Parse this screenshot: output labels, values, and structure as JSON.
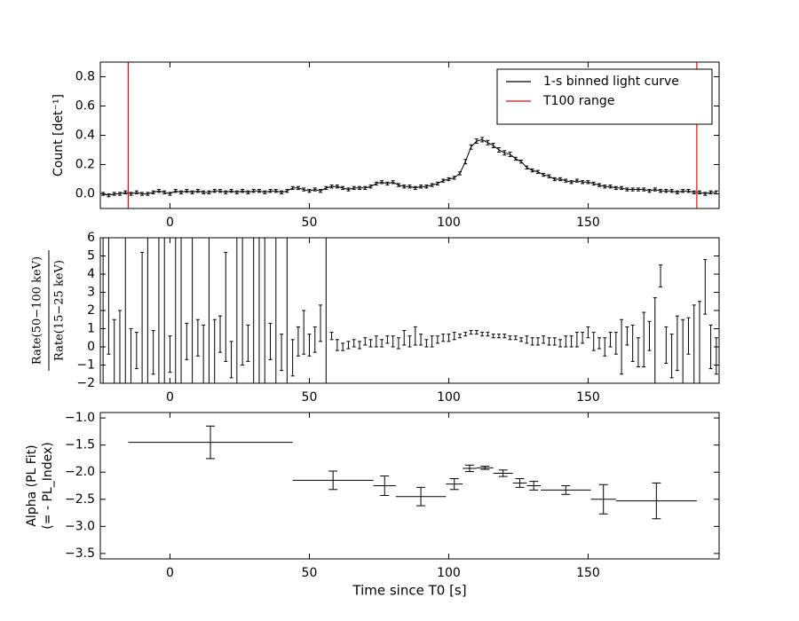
{
  "chart_data": [
    {
      "type": "errorbar",
      "ylabel": "Count [det⁻¹]",
      "xlim": [
        -25,
        197
      ],
      "ylim": [
        -0.1,
        0.9
      ],
      "xticks": [
        0,
        50,
        100,
        150
      ],
      "yticks": [
        {
          "value": 0,
          "label": "0.0"
        },
        0.2,
        0.4,
        0.6,
        0.8
      ],
      "legend": "upper right",
      "series": [
        {
          "name": "1-s binned light curve",
          "color": "#000000",
          "x": [
            -24,
            -22,
            -20,
            -18,
            -16,
            -14,
            -12,
            -10,
            -8,
            -6,
            -4,
            -2,
            0,
            2,
            4,
            6,
            8,
            10,
            12,
            14,
            16,
            18,
            20,
            22,
            24,
            26,
            28,
            30,
            32,
            34,
            36,
            38,
            40,
            42,
            44,
            46,
            48,
            50,
            52,
            54,
            56,
            58,
            60,
            62,
            64,
            66,
            68,
            70,
            72,
            74,
            76,
            78,
            80,
            82,
            84,
            86,
            88,
            90,
            92,
            94,
            96,
            98,
            100,
            102,
            104,
            106,
            108,
            110,
            112,
            114,
            116,
            118,
            120,
            122,
            124,
            126,
            128,
            130,
            132,
            134,
            136,
            138,
            140,
            142,
            144,
            146,
            148,
            150,
            152,
            154,
            156,
            158,
            160,
            162,
            164,
            166,
            168,
            170,
            172,
            174,
            176,
            178,
            180,
            182,
            184,
            186,
            188,
            190,
            192,
            194,
            196
          ],
          "values": [
            0.0,
            -0.01,
            0.0,
            0.0,
            0.01,
            0.0,
            0.01,
            0.0,
            0.0,
            0.01,
            0.02,
            0.01,
            0.0,
            0.02,
            0.01,
            0.02,
            0.01,
            0.02,
            0.01,
            0.01,
            0.02,
            0.02,
            0.01,
            0.02,
            0.01,
            0.02,
            0.01,
            0.02,
            0.02,
            0.01,
            0.02,
            0.02,
            0.01,
            0.02,
            0.04,
            0.04,
            0.03,
            0.02,
            0.03,
            0.02,
            0.04,
            0.05,
            0.05,
            0.04,
            0.03,
            0.04,
            0.04,
            0.04,
            0.05,
            0.07,
            0.08,
            0.07,
            0.08,
            0.06,
            0.05,
            0.05,
            0.04,
            0.05,
            0.05,
            0.06,
            0.07,
            0.09,
            0.1,
            0.11,
            0.14,
            0.22,
            0.32,
            0.36,
            0.37,
            0.35,
            0.33,
            0.3,
            0.28,
            0.27,
            0.24,
            0.22,
            0.18,
            0.16,
            0.15,
            0.13,
            0.12,
            0.1,
            0.1,
            0.09,
            0.08,
            0.09,
            0.08,
            0.08,
            0.07,
            0.06,
            0.05,
            0.05,
            0.04,
            0.04,
            0.03,
            0.03,
            0.03,
            0.03,
            0.02,
            0.03,
            0.02,
            0.02,
            0.02,
            0.01,
            0.02,
            0.02,
            0.01,
            0.01,
            0.0,
            0.01,
            0.01
          ],
          "errors": [
            0.01,
            0.01,
            0.01,
            0.01,
            0.01,
            0.01,
            0.01,
            0.01,
            0.01,
            0.01,
            0.01,
            0.01,
            0.01,
            0.01,
            0.01,
            0.01,
            0.01,
            0.01,
            0.01,
            0.01,
            0.01,
            0.01,
            0.01,
            0.01,
            0.01,
            0.01,
            0.01,
            0.01,
            0.01,
            0.01,
            0.01,
            0.01,
            0.01,
            0.01,
            0.01,
            0.01,
            0.01,
            0.01,
            0.01,
            0.01,
            0.01,
            0.01,
            0.01,
            0.01,
            0.01,
            0.01,
            0.01,
            0.01,
            0.01,
            0.01,
            0.01,
            0.01,
            0.01,
            0.01,
            0.01,
            0.01,
            0.01,
            0.01,
            0.01,
            0.01,
            0.01,
            0.01,
            0.01,
            0.01,
            0.01,
            0.015,
            0.015,
            0.015,
            0.015,
            0.015,
            0.015,
            0.015,
            0.015,
            0.015,
            0.01,
            0.01,
            0.01,
            0.01,
            0.01,
            0.01,
            0.01,
            0.01,
            0.01,
            0.01,
            0.01,
            0.01,
            0.01,
            0.01,
            0.01,
            0.01,
            0.01,
            0.01,
            0.01,
            0.01,
            0.01,
            0.01,
            0.01,
            0.01,
            0.01,
            0.01,
            0.01,
            0.01,
            0.01,
            0.01,
            0.01,
            0.01,
            0.01,
            0.01,
            0.01,
            0.01,
            0.01
          ]
        }
      ],
      "vlines": {
        "name": "T100 range",
        "color": "#ff0000",
        "x": [
          -15,
          189
        ]
      }
    },
    {
      "type": "errorbar",
      "ylabel_numerator": "Rate(50−100 keV)",
      "ylabel_denominator": "Rate(15−25 keV)",
      "xlim": [
        -25,
        197
      ],
      "ylim": [
        -2,
        6
      ],
      "xticks": [
        0,
        50,
        100,
        150
      ],
      "yticks": [
        {
          "value": -2,
          "label": "−2"
        },
        {
          "value": -1,
          "label": "−1"
        },
        0,
        1,
        2,
        3,
        4,
        5,
        6
      ],
      "color": "#000000",
      "x": [
        -24,
        -22,
        -20,
        -18,
        -16,
        -14,
        -12,
        -10,
        -8,
        -6,
        -4,
        -2,
        0,
        2,
        4,
        6,
        8,
        10,
        12,
        14,
        16,
        18,
        20,
        22,
        24,
        26,
        28,
        30,
        32,
        34,
        36,
        38,
        40,
        42,
        44,
        46,
        48,
        50,
        52,
        54,
        56,
        58,
        60,
        62,
        64,
        66,
        68,
        70,
        72,
        74,
        76,
        78,
        80,
        82,
        84,
        86,
        88,
        90,
        92,
        94,
        96,
        98,
        100,
        102,
        104,
        106,
        108,
        110,
        112,
        114,
        116,
        118,
        120,
        122,
        124,
        126,
        128,
        130,
        132,
        134,
        136,
        138,
        140,
        142,
        144,
        146,
        148,
        150,
        152,
        154,
        156,
        158,
        160,
        162,
        164,
        166,
        168,
        170,
        172,
        174,
        176,
        178,
        180,
        182,
        184,
        186,
        188,
        190,
        192,
        194,
        196
      ],
      "values": [
        0.1,
        5.6,
        -0.5,
        -1.0,
        3.6,
        -0.5,
        -0.2,
        -0.8,
        2.0,
        -0.3,
        0.5,
        2.4,
        -0.4,
        0.3,
        2.2,
        0.3,
        3.0,
        0.5,
        -0.8,
        1.5,
        -1.5,
        0.7,
        2.2,
        -0.7,
        0.8,
        3.0,
        0.2,
        1.8,
        0.0,
        3.4,
        0.3,
        2.2,
        -0.3,
        0.5,
        -0.6,
        0.3,
        0.8,
        0.1,
        0.4,
        1.3,
        4.9,
        0.6,
        0.1,
        0.0,
        0.1,
        0.2,
        0.1,
        0.3,
        0.2,
        0.3,
        0.2,
        0.4,
        0.3,
        0.2,
        0.5,
        0.3,
        0.6,
        0.4,
        0.2,
        0.3,
        0.4,
        0.5,
        0.5,
        0.6,
        0.6,
        0.7,
        0.8,
        0.8,
        0.7,
        0.7,
        0.6,
        0.6,
        0.6,
        0.5,
        0.5,
        0.4,
        0.4,
        0.3,
        0.3,
        0.4,
        0.3,
        0.3,
        0.2,
        0.3,
        0.3,
        0.4,
        0.5,
        0.8,
        0.3,
        0.2,
        0.0,
        0.4,
        0.2,
        0.0,
        0.6,
        0.2,
        -0.3,
        0.4,
        0.6,
        -0.3,
        3.9,
        0.1,
        -0.5,
        0.2,
        -1.0,
        0.6,
        -0.7,
        -1.5,
        3.3,
        0.0,
        -0.5
      ],
      "errors": [
        8,
        6,
        2,
        3,
        8,
        1.5,
        1,
        6,
        8,
        1.2,
        6,
        8,
        1,
        6,
        5,
        1,
        5,
        1,
        2,
        6,
        3,
        1,
        3,
        1,
        7,
        4,
        1,
        6,
        8,
        6,
        1,
        6,
        1,
        8,
        1,
        0.8,
        1.2,
        0.6,
        0.7,
        1,
        9,
        0.2,
        0.3,
        0.2,
        0.2,
        0.2,
        0.2,
        0.2,
        0.2,
        0.3,
        0.2,
        0.2,
        0.3,
        0.3,
        0.4,
        0.3,
        0.5,
        0.3,
        0.2,
        0.3,
        0.2,
        0.2,
        0.2,
        0.2,
        0.1,
        0.1,
        0.1,
        0.1,
        0.1,
        0.1,
        0.1,
        0.1,
        0.1,
        0.1,
        0.1,
        0.1,
        0.2,
        0.2,
        0.2,
        0.2,
        0.2,
        0.2,
        0.2,
        0.3,
        0.3,
        0.4,
        0.3,
        0.3,
        0.5,
        0.3,
        0.5,
        0.4,
        0.6,
        1.5,
        0.5,
        1.0,
        0.8,
        1.5,
        0.8,
        3.0,
        0.6,
        1.0,
        1.2,
        1.5,
        2.5,
        1.0,
        3.0,
        4.0,
        1.5,
        1.2,
        1.0
      ]
    },
    {
      "type": "errorbar",
      "ylabel": [
        "Alpha (PL Fit)",
        "(= - PL_Index)"
      ],
      "xlabel": "Time since T0 [s]",
      "xlim": [
        -25,
        197
      ],
      "ylim": [
        -3.6,
        -0.9
      ],
      "xticks": [
        0,
        50,
        100,
        150
      ],
      "yticks": [
        {
          "value": -3.5,
          "label": "−3.5"
        },
        {
          "value": -3.0,
          "label": "−3.0"
        },
        {
          "value": -2.5,
          "label": "−2.5"
        },
        {
          "value": -2.0,
          "label": "−2.0"
        },
        {
          "value": -1.5,
          "label": "−1.5"
        },
        {
          "value": -1.0,
          "label": "−1.0"
        }
      ],
      "color": "#000000",
      "x": [
        14.5,
        58.5,
        77,
        90,
        102,
        107.5,
        113,
        119.5,
        125.5,
        130.5,
        142,
        155.5,
        174.5
      ],
      "xerr": [
        29.5,
        14.5,
        4,
        9,
        3,
        2.5,
        3,
        3.5,
        2.5,
        2.5,
        9,
        4.5,
        14.5
      ],
      "values": [
        -1.45,
        -2.15,
        -2.25,
        -2.45,
        -2.22,
        -1.93,
        -1.92,
        -2.02,
        -2.2,
        -2.25,
        -2.33,
        -2.5,
        -2.53
      ],
      "errors": [
        0.3,
        0.17,
        0.18,
        0.17,
        0.1,
        0.06,
        0.03,
        0.06,
        0.08,
        0.08,
        0.08,
        0.27,
        0.33
      ]
    }
  ]
}
